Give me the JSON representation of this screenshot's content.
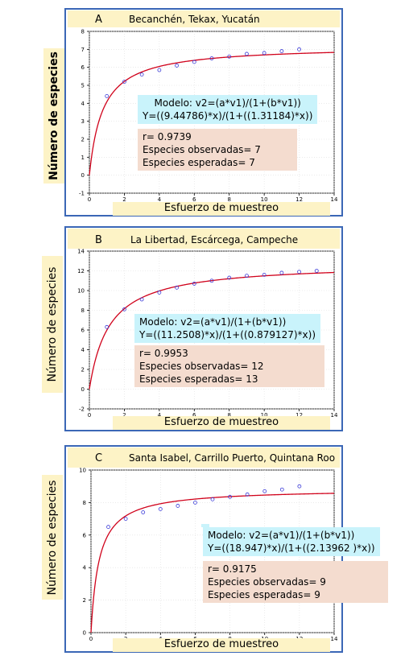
{
  "chart_data": [
    {
      "type": "scatter",
      "letter": "A",
      "title": "Becanchén, Tekax, Yucatán",
      "xlabel": "Esfuerzo de muestreo",
      "ylabel": "Número de especies",
      "xlim": [
        0,
        14
      ],
      "ylim": [
        -1,
        8
      ],
      "xticks": [
        0,
        2,
        4,
        6,
        8,
        10,
        12,
        14
      ],
      "yticks": [
        -1,
        0,
        1,
        2,
        3,
        4,
        5,
        6,
        7,
        8
      ],
      "points": [
        [
          1,
          4.4
        ],
        [
          2,
          5.2
        ],
        [
          3,
          5.6
        ],
        [
          4,
          5.85
        ],
        [
          5,
          6.1
        ],
        [
          6,
          6.3
        ],
        [
          7,
          6.5
        ],
        [
          8,
          6.6
        ],
        [
          9,
          6.75
        ],
        [
          10,
          6.8
        ],
        [
          11,
          6.9
        ],
        [
          12,
          7.0
        ]
      ],
      "curve": {
        "a": 9.44786,
        "b": 1.31184
      },
      "curve_color": "#d0021b",
      "point_color": "#3a3ad8",
      "model_line1": "Modelo: v2=(a*v1)/(1+(b*v1))",
      "model_line2": "Y=((9.44786)*x)/(1+((1.31184)*x))",
      "stat_r": "r= 0.9739",
      "stat_obs": "Especies observadas= 7",
      "stat_esp": "Especies esperadas= 7"
    },
    {
      "type": "scatter",
      "letter": "B",
      "title": "La Libertad, Escárcega, Campeche",
      "xlabel": "Esfuerzo de muestreo",
      "ylabel": "Número de especies",
      "xlim": [
        0,
        14
      ],
      "ylim": [
        -2,
        14
      ],
      "xticks": [
        0,
        2,
        4,
        6,
        8,
        10,
        12,
        14
      ],
      "yticks": [
        -2,
        0,
        2,
        4,
        6,
        8,
        10,
        12,
        14
      ],
      "points": [
        [
          1,
          6.3
        ],
        [
          2,
          8.1
        ],
        [
          3,
          9.1
        ],
        [
          4,
          9.8
        ],
        [
          5,
          10.3
        ],
        [
          6,
          10.7
        ],
        [
          7,
          11.0
        ],
        [
          8,
          11.3
        ],
        [
          9,
          11.5
        ],
        [
          10,
          11.6
        ],
        [
          11,
          11.8
        ],
        [
          12,
          11.9
        ],
        [
          13,
          12.0
        ]
      ],
      "curve": {
        "a": 11.2508,
        "b": 0.879127
      },
      "curve_color": "#d0021b",
      "point_color": "#3a3ad8",
      "model_line1": "Modelo: v2=(a*v1)/(1+(b*v1))",
      "model_line2": "Y=((11.2508)*x)/(1+((0.879127)*x))",
      "stat_r": "r= 0.9953",
      "stat_obs": "Especies observadas= 12",
      "stat_esp": "Especies esperadas= 13"
    },
    {
      "type": "scatter",
      "letter": "C",
      "title": "Santa Isabel, Carrillo Puerto, Quintana Roo",
      "xlabel": "Esfuerzo de muestreo",
      "ylabel": "Número de especies",
      "xlim": [
        0,
        14
      ],
      "ylim": [
        0,
        10
      ],
      "xticks": [
        0,
        2,
        4,
        6,
        8,
        10,
        12,
        14
      ],
      "yticks": [
        0,
        2,
        4,
        6,
        8,
        10
      ],
      "points": [
        [
          1,
          6.5
        ],
        [
          2,
          7.0
        ],
        [
          3,
          7.4
        ],
        [
          4,
          7.6
        ],
        [
          5,
          7.8
        ],
        [
          6,
          8.0
        ],
        [
          7,
          8.2
        ],
        [
          8,
          8.35
        ],
        [
          9,
          8.5
        ],
        [
          10,
          8.7
        ],
        [
          11,
          8.8
        ],
        [
          12,
          9.0
        ]
      ],
      "curve": {
        "a": 18.947,
        "b": 2.13962
      },
      "curve_color": "#d0021b",
      "point_color": "#3a3ad8",
      "model_line1": "Modelo: v2=(a*v1)/(1+(b*v1))",
      "model_line2": "Y=((18.947)*x)/(1+((2.13962 )*x))",
      "stat_r": "r= 0.9175",
      "stat_obs": "Especies observadas= 9",
      "stat_esp": "Especies esperadas= 9"
    }
  ]
}
